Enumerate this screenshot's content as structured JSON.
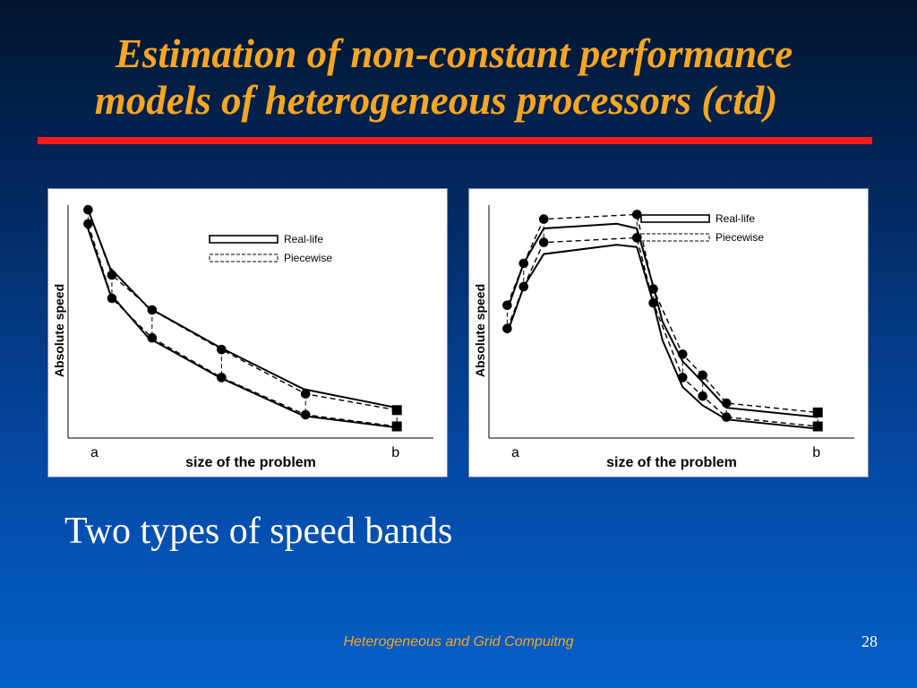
{
  "slide": {
    "title_line1": "Estimation of non-constant performance",
    "title_line2": "models of heterogeneous processors (ctd)",
    "subtitle": "Two types of speed bands",
    "footer": "Heterogeneous and Grid Compuitng",
    "page_number": "28",
    "colors": {
      "title": "#f5a623",
      "rule": "#ff1a1a",
      "footer": "#f5a623"
    }
  },
  "chart_data": [
    {
      "type": "line",
      "title": "",
      "xlabel": "size of the problem",
      "ylabel": "Absolute speed",
      "x_tick_labels": [
        "a",
        "b"
      ],
      "xlim": [
        0,
        10
      ],
      "ylim": [
        0,
        10
      ],
      "grid": false,
      "legend_position": "top-right",
      "legend": [
        {
          "label": "Real-life",
          "style": "solid-band"
        },
        {
          "label": "Piecewise",
          "style": "dashed-band"
        }
      ],
      "series": [
        {
          "name": "Real-life",
          "style": "solid",
          "upper": {
            "x": [
              0.5,
              1.15,
              2.2,
              4.15,
              6.45,
              9.0
            ],
            "y": [
              10.0,
              7.3,
              5.6,
              3.9,
              2.1,
              1.3
            ]
          },
          "lower": {
            "x": [
              0.5,
              1.15,
              2.2,
              4.15,
              6.45,
              9.0
            ],
            "y": [
              9.2,
              6.2,
              4.3,
              2.6,
              0.95,
              0.45
            ]
          }
        },
        {
          "name": "Piecewise",
          "style": "dashed",
          "upper": {
            "x": [
              0.55,
              1.2,
              2.3,
              4.2,
              6.5,
              9.0
            ],
            "y": [
              9.8,
              7.0,
              5.5,
              3.8,
              1.9,
              1.2
            ]
          },
          "lower": {
            "x": [
              0.55,
              1.2,
              2.3,
              4.2,
              6.5,
              9.0
            ],
            "y": [
              9.2,
              6.0,
              4.3,
              2.6,
              1.0,
              0.5
            ]
          }
        }
      ],
      "points": {
        "upper": {
          "x": [
            0.55,
            1.2,
            2.3,
            4.2,
            6.5,
            9.0
          ],
          "y": [
            9.8,
            7.0,
            5.5,
            3.8,
            1.9,
            1.2
          ]
        },
        "lower": {
          "x": [
            0.55,
            1.2,
            2.3,
            4.2,
            6.5,
            9.0
          ],
          "y": [
            9.2,
            6.0,
            4.3,
            2.6,
            1.0,
            0.5
          ]
        },
        "last_marker": "square"
      }
    },
    {
      "type": "line",
      "title": "",
      "xlabel": "size of the problem",
      "ylabel": "Absolute speed",
      "x_tick_labels": [
        "a",
        "b"
      ],
      "xlim": [
        0,
        10
      ],
      "ylim": [
        0,
        10
      ],
      "grid": false,
      "legend_position": "top-right",
      "legend": [
        {
          "label": "Real-life",
          "style": "solid-band"
        },
        {
          "label": "Piecewise",
          "style": "dashed-band"
        }
      ],
      "series": [
        {
          "name": "Real-life",
          "style": "solid",
          "upper": {
            "x": [
              0.5,
              0.95,
              1.5,
              3.5,
              4.05,
              4.5,
              4.75,
              5.3,
              5.85,
              6.5,
              9.0
            ],
            "y": [
              5.5,
              7.5,
              9.0,
              9.2,
              9.0,
              6.5,
              5.0,
              3.3,
              2.4,
              1.3,
              0.9
            ]
          },
          "lower": {
            "x": [
              0.5,
              0.95,
              1.5,
              3.5,
              4.05,
              4.5,
              4.75,
              5.3,
              5.85,
              6.5,
              9.0
            ],
            "y": [
              4.5,
              6.5,
              7.9,
              8.3,
              8.2,
              5.8,
              4.2,
              2.2,
              1.4,
              0.8,
              0.4
            ]
          }
        },
        {
          "name": "Piecewise",
          "style": "dashed",
          "upper": {
            "x": [
              0.5,
              0.95,
              1.5,
              4.05,
              4.5,
              5.3,
              5.85,
              6.5,
              9.0
            ],
            "y": [
              5.7,
              7.5,
              9.4,
              9.6,
              6.4,
              3.6,
              2.7,
              1.5,
              1.1
            ]
          },
          "lower": {
            "x": [
              0.5,
              0.95,
              1.5,
              4.05,
              4.5,
              5.3,
              5.85,
              6.5,
              9.0
            ],
            "y": [
              4.7,
              6.5,
              8.4,
              8.6,
              5.8,
              2.6,
              1.8,
              0.9,
              0.5
            ]
          }
        }
      ],
      "points": {
        "upper": {
          "x": [
            0.5,
            0.95,
            1.5,
            4.05,
            4.5,
            5.3,
            5.85,
            6.5,
            9.0
          ],
          "y": [
            5.7,
            7.5,
            9.4,
            9.6,
            6.4,
            3.6,
            2.7,
            1.5,
            1.1
          ]
        },
        "lower": {
          "x": [
            0.5,
            0.95,
            1.5,
            4.05,
            4.5,
            5.3,
            5.85,
            6.5,
            9.0
          ],
          "y": [
            4.7,
            6.5,
            8.4,
            8.6,
            5.8,
            2.6,
            1.8,
            0.9,
            0.5
          ]
        },
        "last_marker": "square"
      }
    }
  ]
}
